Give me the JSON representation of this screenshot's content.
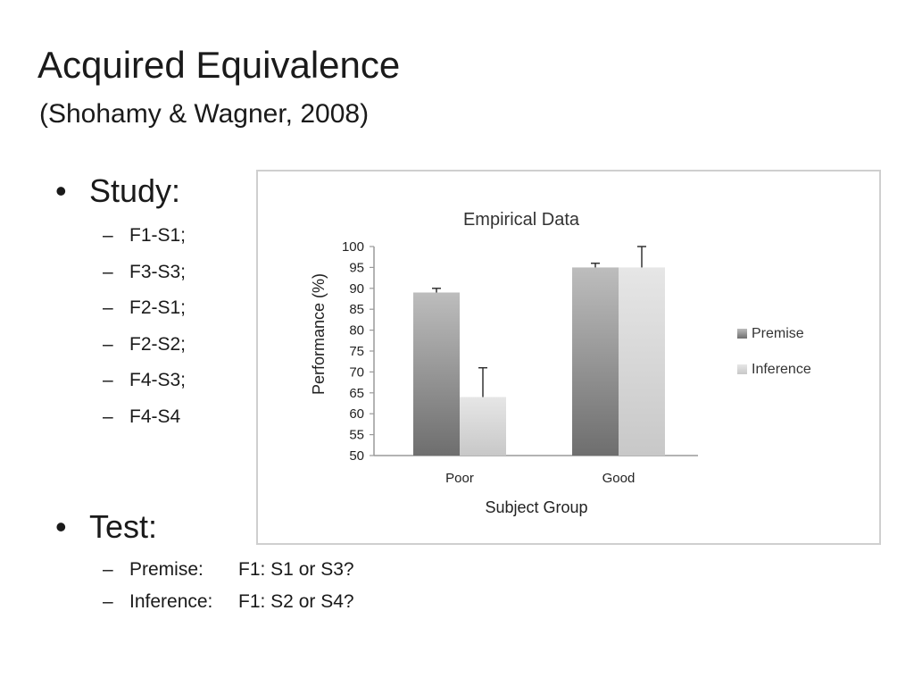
{
  "slide": {
    "title": "Acquired Equivalence",
    "subtitle": "(Shohamy & Wagner, 2008)"
  },
  "study": {
    "heading": "Study:",
    "items": [
      "F1-S1;",
      "F3-S3;",
      "F2-S1;",
      "F2-S2;",
      "F4-S3;",
      "F4-S4"
    ]
  },
  "test": {
    "heading": "Test:",
    "items": [
      {
        "label": "Premise:",
        "value": "F1: S1 or S3?"
      },
      {
        "label": "Inference:",
        "value": "F1: S2 or S4?"
      }
    ]
  },
  "chart_data": {
    "type": "bar",
    "title": "Empirical Data",
    "xlabel": "Subject Group",
    "ylabel": "Performance (%)",
    "categories": [
      "Poor",
      "Good"
    ],
    "ylim": [
      50,
      100
    ],
    "yticks": [
      50,
      55,
      60,
      65,
      70,
      75,
      80,
      85,
      90,
      95,
      100
    ],
    "series": [
      {
        "name": "Premise",
        "values": [
          89,
          95
        ],
        "error": [
          1,
          1
        ],
        "color": "#8c8c8c"
      },
      {
        "name": "Inference",
        "values": [
          64,
          95
        ],
        "error": [
          7,
          5
        ],
        "color": "#d9d9d9"
      }
    ],
    "legend": "right",
    "grid": false
  }
}
